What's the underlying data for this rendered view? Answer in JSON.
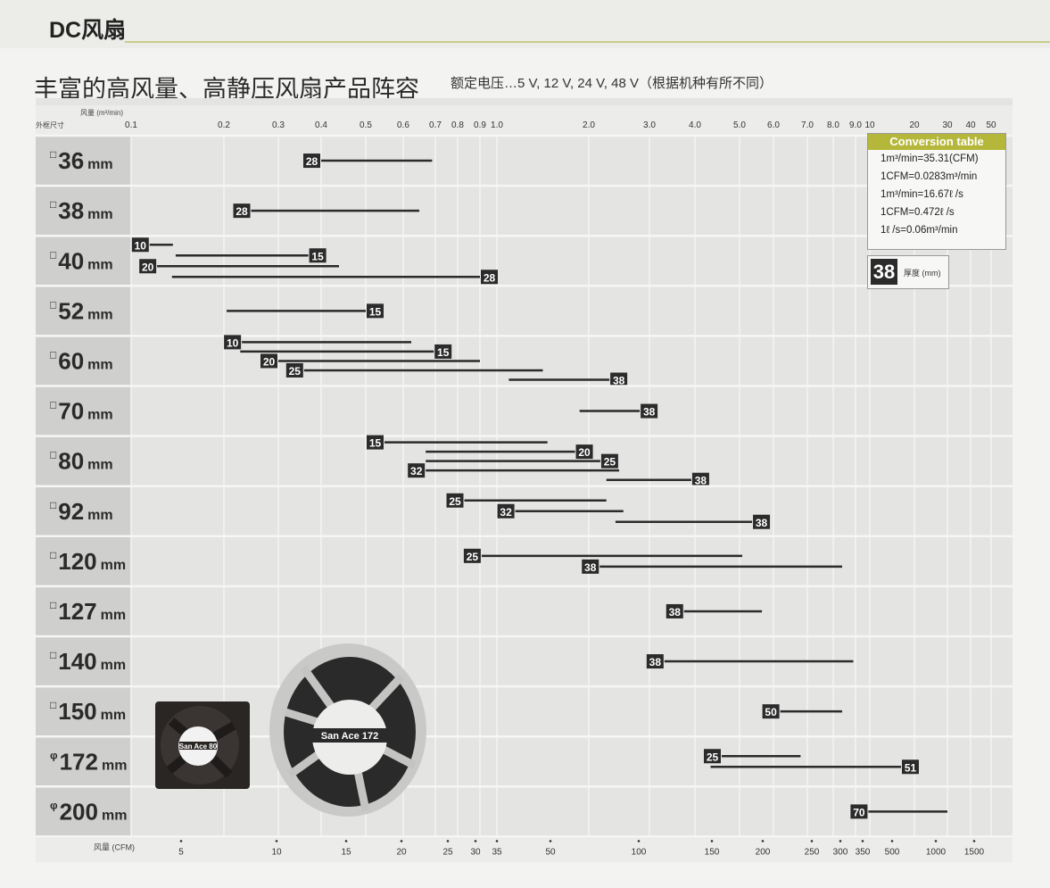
{
  "header": {
    "section": "DC风扇"
  },
  "title": "丰富的高风量、高静压风扇产品阵容",
  "subtitle": "额定电压…5 V, 12 V, 24 V, 48 V（根据机种有所不同）",
  "conversion_table": {
    "title": "Conversion table",
    "rows": [
      "1m³/min=35.31(CFM)",
      "1CFM=0.0283m³/min",
      "1m³/min=16.67ℓ /s",
      "1CFM=0.472ℓ /s",
      "1ℓ /s=0.06m³/min"
    ]
  },
  "legend": {
    "badge": "38",
    "label": "厚度 (mm)"
  },
  "fan_images": [
    "San Ace 80",
    "San Ace 172"
  ],
  "chart_data": {
    "type": "range-bar",
    "row_axis_label": "外框尺寸",
    "top_axis_label": "风量 (m³/min)",
    "bottom_axis_label": "风量 (CFM)",
    "top_ticks": [
      "0.1",
      "0.2",
      "0.3",
      "0.4",
      "0.5",
      "0.6",
      "0.7",
      "0.8",
      "0.9",
      "1.0",
      "2.0",
      "3.0",
      "4.0",
      "5.0",
      "6.0",
      "7.0",
      "8.0",
      "9.0",
      "10",
      "20",
      "30",
      "40",
      "50"
    ],
    "bottom_ticks": [
      "5",
      "10",
      "15",
      "20",
      "25",
      "30",
      "35",
      "50",
      "100",
      "150",
      "200",
      "250",
      "300",
      "350",
      "500",
      "1000",
      "1500"
    ],
    "grid": true,
    "legend_placement": "top-right",
    "rows": [
      {
        "shape": "□",
        "size": "36",
        "unit": "mm",
        "bars": [
          {
            "thickness": "28",
            "min": 0.4,
            "max": 0.69,
            "label_position": "left"
          }
        ]
      },
      {
        "shape": "□",
        "size": "38",
        "unit": "mm",
        "bars": [
          {
            "thickness": "28",
            "min": 0.25,
            "max": 0.65,
            "label_position": "left"
          }
        ]
      },
      {
        "shape": "□",
        "size": "40",
        "unit": "mm",
        "bars": [
          {
            "thickness": "10",
            "min": 0.12,
            "max": 0.145,
            "label_position": "left"
          },
          {
            "thickness": "15",
            "min": 0.148,
            "max": 0.37,
            "label_position": "right"
          },
          {
            "thickness": "20",
            "min": 0.128,
            "max": 0.44,
            "label_position": "left"
          },
          {
            "thickness": "28",
            "min": 0.144,
            "max": 0.9,
            "label_position": "right"
          }
        ]
      },
      {
        "shape": "□",
        "size": "52",
        "unit": "mm",
        "bars": [
          {
            "thickness": "15",
            "min": 0.205,
            "max": 0.5,
            "label_position": "right"
          }
        ]
      },
      {
        "shape": "□",
        "size": "60",
        "unit": "mm",
        "bars": [
          {
            "thickness": "10",
            "min": 0.233,
            "max": 0.625,
            "label_position": "left"
          },
          {
            "thickness": "15",
            "min": 0.23,
            "max": 0.695,
            "label_position": "right"
          },
          {
            "thickness": "20",
            "min": 0.3,
            "max": 0.9,
            "label_position": "left"
          },
          {
            "thickness": "25",
            "min": 0.36,
            "max": 1.5,
            "label_position": "left"
          },
          {
            "thickness": "38",
            "min": 1.13,
            "max": 2.34,
            "label_position": "right"
          }
        ]
      },
      {
        "shape": "□",
        "size": "70",
        "unit": "mm",
        "bars": [
          {
            "thickness": "38",
            "min": 1.9,
            "max": 2.84,
            "label_position": "right"
          }
        ]
      },
      {
        "shape": "□",
        "size": "80",
        "unit": "mm",
        "bars": [
          {
            "thickness": "15",
            "min": 0.55,
            "max": 1.55,
            "label_position": "left"
          },
          {
            "thickness": "20",
            "min": 0.67,
            "max": 1.85,
            "label_position": "right"
          },
          {
            "thickness": "25",
            "min": 0.67,
            "max": 2.19,
            "label_position": "right"
          },
          {
            "thickness": "32",
            "min": 0.67,
            "max": 2.5,
            "label_position": "left"
          },
          {
            "thickness": "38",
            "min": 2.29,
            "max": 3.92,
            "label_position": "right"
          }
        ]
      },
      {
        "shape": "□",
        "size": "92",
        "unit": "mm",
        "bars": [
          {
            "thickness": "25",
            "min": 0.83,
            "max": 2.29,
            "label_position": "left"
          },
          {
            "thickness": "32",
            "min": 1.2,
            "max": 2.57,
            "label_position": "left"
          },
          {
            "thickness": "38",
            "min": 2.44,
            "max": 5.37,
            "label_position": "right"
          }
        ]
      },
      {
        "shape": "□",
        "size": "120",
        "unit": "mm",
        "bars": [
          {
            "thickness": "25",
            "min": 0.91,
            "max": 5.08,
            "label_position": "left"
          },
          {
            "thickness": "38",
            "min": 2.18,
            "max": 8.4,
            "label_position": "left"
          }
        ]
      },
      {
        "shape": "□",
        "size": "127",
        "unit": "mm",
        "bars": [
          {
            "thickness": "38",
            "min": 3.76,
            "max": 5.66,
            "label_position": "left"
          }
        ]
      },
      {
        "shape": "□",
        "size": "140",
        "unit": "mm",
        "bars": [
          {
            "thickness": "38",
            "min": 3.33,
            "max": 8.9,
            "label_position": "left"
          }
        ]
      },
      {
        "shape": "□",
        "size": "150",
        "unit": "mm",
        "bars": [
          {
            "thickness": "50",
            "min": 6.2,
            "max": 8.4,
            "label_position": "left"
          }
        ]
      },
      {
        "shape": "φ",
        "size": "172",
        "unit": "mm",
        "bars": [
          {
            "thickness": "25",
            "min": 4.6,
            "max": 6.8,
            "label_position": "left"
          },
          {
            "thickness": "51",
            "min": 4.35,
            "max": 17,
            "label_position": "right"
          }
        ]
      },
      {
        "shape": "φ",
        "size": "200",
        "unit": "mm",
        "bars": [
          {
            "thickness": "70",
            "min": 9.9,
            "max": 30,
            "label_position": "left"
          }
        ]
      }
    ]
  }
}
